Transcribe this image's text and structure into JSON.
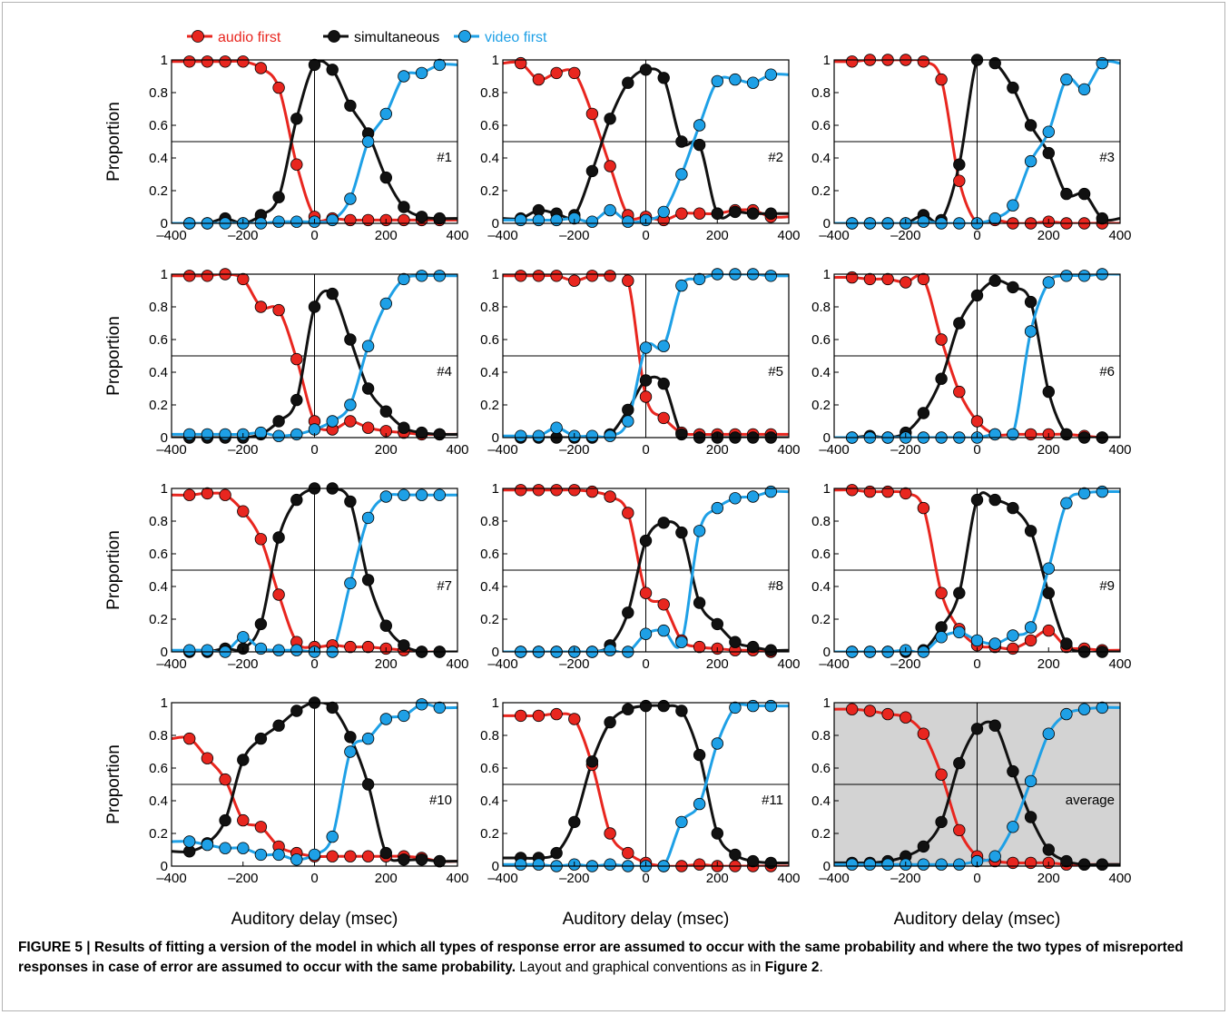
{
  "figure": {
    "caption_bold": "FIGURE 5 | Results of fitting a version of the model in which all types of response error are assumed to occur with the same probability and where the two types of misreported responses in case of error are assumed to occur with the same probability.",
    "caption_rest": " Layout and graphical conventions as in ",
    "caption_ref": "Figure 2",
    "caption_end": "."
  },
  "chart_data": {
    "type": "scatter",
    "legend": [
      "audio first",
      "simultaneous",
      "video first"
    ],
    "legend_position": "top-left",
    "colors": {
      "audio first": "#e8261f",
      "simultaneous": "#111111",
      "video first": "#1ea0e6",
      "average_bg": "#d3d3d3"
    },
    "xlabel": "Auditory delay (msec)",
    "ylabel": "Proportion",
    "xlim": [
      -400,
      400
    ],
    "ylim": [
      0,
      1
    ],
    "xticks": [
      "–400",
      "–200",
      "0",
      "200",
      "400"
    ],
    "yticks": [
      "0",
      "0.2",
      "0.4",
      "0.6",
      "0.8",
      "1"
    ],
    "x": [
      -350,
      -300,
      -250,
      -200,
      -150,
      -100,
      -50,
      0,
      50,
      100,
      150,
      200,
      250,
      300,
      350
    ],
    "panels": [
      {
        "label": "#1",
        "audio": [
          0.99,
          0.99,
          0.99,
          0.99,
          0.95,
          0.83,
          0.36,
          0.04,
          0.03,
          0.02,
          0.02,
          0.02,
          0.02,
          0.02,
          0.02
        ],
        "sim": [
          0.0,
          0.0,
          0.03,
          0.0,
          0.05,
          0.16,
          0.64,
          0.97,
          0.94,
          0.72,
          0.55,
          0.28,
          0.1,
          0.04,
          0.03
        ],
        "video": [
          0.0,
          0.0,
          0.0,
          0.0,
          0.0,
          0.01,
          0.01,
          0.01,
          0.02,
          0.15,
          0.5,
          0.67,
          0.9,
          0.92,
          0.97
        ]
      },
      {
        "label": "#2",
        "audio": [
          0.98,
          0.88,
          0.92,
          0.92,
          0.67,
          0.35,
          0.05,
          0.04,
          0.02,
          0.06,
          0.06,
          0.06,
          0.08,
          0.08,
          0.04
        ],
        "sim": [
          0.03,
          0.08,
          0.06,
          0.05,
          0.32,
          0.64,
          0.86,
          0.94,
          0.89,
          0.5,
          0.48,
          0.06,
          0.07,
          0.06,
          0.06
        ],
        "video": [
          0.02,
          0.02,
          0.02,
          0.03,
          0.01,
          0.08,
          0.01,
          0.02,
          0.07,
          0.3,
          0.6,
          0.87,
          0.88,
          0.86,
          0.91
        ]
      },
      {
        "label": "#3",
        "audio": [
          0.99,
          1.0,
          1.0,
          1.0,
          0.99,
          0.88,
          0.26,
          0.0,
          0.02,
          0.0,
          0.0,
          0.01,
          0.0,
          0.0,
          0.0
        ],
        "sim": [
          0.0,
          0.0,
          0.0,
          0.0,
          0.05,
          0.02,
          0.36,
          1.0,
          0.98,
          0.83,
          0.6,
          0.43,
          0.18,
          0.18,
          0.03
        ],
        "video": [
          0.0,
          0.0,
          0.0,
          0.0,
          0.01,
          0.0,
          0.0,
          0.0,
          0.03,
          0.11,
          0.38,
          0.56,
          0.88,
          0.82,
          0.98
        ]
      },
      {
        "label": "#4",
        "audio": [
          0.99,
          0.99,
          1.0,
          0.97,
          0.8,
          0.78,
          0.48,
          0.1,
          0.05,
          0.1,
          0.06,
          0.04,
          0.03,
          0.02,
          0.02
        ],
        "sim": [
          0.0,
          0.0,
          0.0,
          0.0,
          0.02,
          0.1,
          0.23,
          0.8,
          0.88,
          0.6,
          0.3,
          0.16,
          0.06,
          0.03,
          0.02
        ],
        "video": [
          0.02,
          0.02,
          0.02,
          0.02,
          0.03,
          0.01,
          0.02,
          0.05,
          0.1,
          0.2,
          0.56,
          0.82,
          0.97,
          0.99,
          0.99
        ]
      },
      {
        "label": "#5",
        "audio": [
          0.99,
          0.99,
          0.99,
          0.96,
          0.99,
          0.99,
          0.96,
          0.25,
          0.12,
          0.03,
          0.02,
          0.02,
          0.02,
          0.02,
          0.02
        ],
        "sim": [
          0.0,
          0.0,
          0.0,
          0.0,
          0.0,
          0.02,
          0.17,
          0.35,
          0.33,
          0.02,
          0.0,
          0.0,
          0.0,
          0.0,
          0.0
        ],
        "video": [
          0.01,
          0.01,
          0.06,
          0.01,
          0.01,
          0.01,
          0.1,
          0.55,
          0.56,
          0.93,
          0.97,
          1.0,
          1.0,
          1.0,
          0.99
        ]
      },
      {
        "label": "#6",
        "audio": [
          0.98,
          0.97,
          0.97,
          0.95,
          0.97,
          0.6,
          0.28,
          0.1,
          0.02,
          0.02,
          0.02,
          0.02,
          0.02,
          0.01,
          0.0
        ],
        "sim": [
          0.0,
          0.01,
          0.0,
          0.03,
          0.15,
          0.36,
          0.7,
          0.87,
          0.96,
          0.92,
          0.83,
          0.28,
          0.02,
          0.0,
          0.0
        ],
        "video": [
          0.0,
          0.0,
          0.0,
          0.0,
          0.0,
          0.0,
          0.0,
          0.0,
          0.02,
          0.02,
          0.65,
          0.95,
          0.99,
          0.99,
          1.0
        ]
      },
      {
        "label": "#7",
        "audio": [
          0.96,
          0.97,
          0.96,
          0.86,
          0.69,
          0.35,
          0.06,
          0.03,
          0.04,
          0.03,
          0.03,
          0.02,
          0.01,
          0.0,
          0.0
        ],
        "sim": [
          0.0,
          0.0,
          0.02,
          0.02,
          0.17,
          0.7,
          0.93,
          1.0,
          1.0,
          0.92,
          0.44,
          0.16,
          0.04,
          0.0,
          0.0
        ],
        "video": [
          0.01,
          0.01,
          0.0,
          0.09,
          0.02,
          0.01,
          0.01,
          0.0,
          0.0,
          0.42,
          0.82,
          0.95,
          0.96,
          0.96,
          0.96
        ]
      },
      {
        "label": "#8",
        "audio": [
          0.99,
          0.99,
          0.99,
          0.99,
          0.98,
          0.95,
          0.85,
          0.36,
          0.29,
          0.07,
          0.03,
          0.02,
          0.01,
          0.01,
          0.0
        ],
        "sim": [
          0.0,
          0.0,
          0.0,
          0.0,
          0.0,
          0.04,
          0.24,
          0.68,
          0.79,
          0.73,
          0.3,
          0.17,
          0.06,
          0.03,
          0.01
        ],
        "video": [
          0.0,
          0.0,
          0.0,
          0.0,
          0.0,
          0.01,
          0.0,
          0.11,
          0.13,
          0.06,
          0.74,
          0.88,
          0.94,
          0.95,
          0.98
        ]
      },
      {
        "label": "#9",
        "audio": [
          0.99,
          0.98,
          0.98,
          0.97,
          0.88,
          0.36,
          0.14,
          0.04,
          0.03,
          0.02,
          0.07,
          0.13,
          0.03,
          0.02,
          0.01
        ],
        "sim": [
          0.0,
          0.0,
          0.0,
          0.0,
          0.01,
          0.15,
          0.36,
          0.93,
          0.93,
          0.88,
          0.74,
          0.36,
          0.05,
          0.0,
          0.0
        ],
        "video": [
          0.0,
          0.0,
          0.0,
          0.01,
          0.0,
          0.09,
          0.12,
          0.07,
          0.05,
          0.1,
          0.15,
          0.51,
          0.91,
          0.97,
          0.98
        ]
      },
      {
        "label": "#10",
        "audio": [
          0.78,
          0.66,
          0.53,
          0.28,
          0.24,
          0.12,
          0.08,
          0.06,
          0.06,
          0.06,
          0.06,
          0.06,
          0.06,
          0.05,
          0.03
        ],
        "sim": [
          0.09,
          0.14,
          0.28,
          0.65,
          0.78,
          0.86,
          0.95,
          1.0,
          0.97,
          0.79,
          0.5,
          0.08,
          0.04,
          0.04,
          0.03
        ],
        "video": [
          0.15,
          0.13,
          0.11,
          0.11,
          0.07,
          0.07,
          0.04,
          0.07,
          0.18,
          0.7,
          0.78,
          0.9,
          0.92,
          0.99,
          0.97
        ]
      },
      {
        "label": "#11",
        "audio": [
          0.92,
          0.92,
          0.93,
          0.9,
          0.62,
          0.2,
          0.08,
          0.02,
          0.0,
          0.0,
          0.01,
          0.0,
          0.0,
          0.0,
          0.0
        ],
        "sim": [
          0.05,
          0.05,
          0.08,
          0.27,
          0.64,
          0.88,
          0.96,
          0.98,
          0.98,
          0.95,
          0.68,
          0.2,
          0.07,
          0.03,
          0.02
        ],
        "video": [
          0.01,
          0.01,
          0.0,
          0.01,
          0.0,
          0.01,
          0.0,
          0.0,
          0.0,
          0.27,
          0.38,
          0.75,
          0.97,
          0.98,
          0.98
        ]
      },
      {
        "label": "average",
        "shaded": true,
        "audio": [
          0.96,
          0.95,
          0.93,
          0.91,
          0.81,
          0.56,
          0.22,
          0.06,
          0.03,
          0.02,
          0.02,
          0.02,
          0.01,
          0.01,
          0.01
        ],
        "sim": [
          0.02,
          0.02,
          0.03,
          0.06,
          0.12,
          0.27,
          0.63,
          0.84,
          0.86,
          0.58,
          0.3,
          0.1,
          0.03,
          0.01,
          0.01
        ],
        "video": [
          0.01,
          0.01,
          0.01,
          0.01,
          0.01,
          0.01,
          0.01,
          0.03,
          0.06,
          0.24,
          0.52,
          0.81,
          0.93,
          0.96,
          0.97
        ]
      }
    ]
  }
}
